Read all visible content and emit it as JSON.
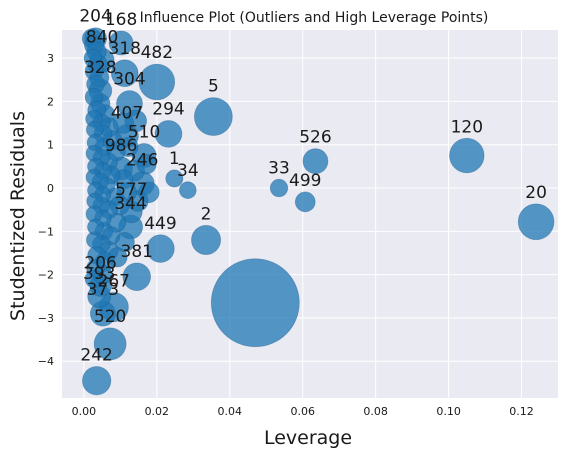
{
  "chart_data": {
    "type": "scatter",
    "title": "Influence Plot (Outliers and High Leverage Points)",
    "xlabel": "Leverage",
    "ylabel": "Studentized Residuals",
    "xlim": [
      -0.006,
      0.13
    ],
    "ylim": [
      -4.85,
      3.65
    ],
    "xticks": [
      0.0,
      0.02,
      0.04,
      0.06,
      0.08,
      0.1,
      0.12
    ],
    "xtick_labels": [
      "0.00",
      "0.02",
      "0.04",
      "0.06",
      "0.08",
      "0.10",
      "0.12"
    ],
    "yticks": [
      3,
      2,
      1,
      0,
      -1,
      -2,
      -3,
      -4
    ],
    "ytick_labels": [
      "3",
      "2",
      "1",
      "0",
      "−1",
      "−2",
      "−3",
      "−4"
    ],
    "grid": true,
    "background": "#eaeaf2",
    "marker_color": "#1f77b4",
    "note": "marker size is proportional to Cook's distance; labeled points show observation index",
    "points": [
      {
        "x": 0.047,
        "y": -2.65,
        "cook": 1.0,
        "label": ""
      },
      {
        "x": 0.124,
        "y": -0.78,
        "cook": 0.12,
        "label": "20"
      },
      {
        "x": 0.105,
        "y": 0.75,
        "cook": 0.11,
        "label": "120"
      },
      {
        "x": 0.0355,
        "y": 1.65,
        "cook": 0.14,
        "label": "5"
      },
      {
        "x": 0.02,
        "y": 2.45,
        "cook": 0.12,
        "label": "482"
      },
      {
        "x": 0.0335,
        "y": -1.2,
        "cook": 0.07,
        "label": "2"
      },
      {
        "x": 0.0635,
        "y": 0.62,
        "cook": 0.045,
        "label": "526"
      },
      {
        "x": 0.0232,
        "y": 1.25,
        "cook": 0.055,
        "label": "294"
      },
      {
        "x": 0.0607,
        "y": -0.32,
        "cook": 0.022,
        "label": "499"
      },
      {
        "x": 0.0535,
        "y": 0.0,
        "cook": 0.014,
        "label": "33"
      },
      {
        "x": 0.0285,
        "y": -0.05,
        "cook": 0.012,
        "label": "34"
      },
      {
        "x": 0.0248,
        "y": 0.22,
        "cook": 0.013,
        "label": "1"
      },
      {
        "x": 0.021,
        "y": -1.4,
        "cook": 0.06,
        "label": "449"
      },
      {
        "x": 0.0035,
        "y": -4.45,
        "cook": 0.065,
        "label": "242"
      },
      {
        "x": 0.0072,
        "y": -3.6,
        "cook": 0.09,
        "label": "520"
      },
      {
        "x": 0.0082,
        "y": -2.75,
        "cook": 0.07,
        "label": "267"
      },
      {
        "x": 0.0145,
        "y": -2.05,
        "cook": 0.06,
        "label": "381"
      },
      {
        "x": 0.0125,
        "y": 1.95,
        "cook": 0.05,
        "label": "304"
      },
      {
        "x": 0.0112,
        "y": 2.65,
        "cook": 0.055,
        "label": "318"
      },
      {
        "x": 0.0102,
        "y": 3.35,
        "cook": 0.04,
        "label": "168"
      },
      {
        "x": 0.0032,
        "y": 3.45,
        "cook": 0.03,
        "label": "204"
      },
      {
        "x": 0.0118,
        "y": 1.2,
        "cook": 0.035,
        "label": "407"
      },
      {
        "x": 0.0165,
        "y": 0.75,
        "cook": 0.04,
        "label": "510"
      },
      {
        "x": 0.016,
        "y": 0.1,
        "cook": 0.04,
        "label": "246"
      },
      {
        "x": 0.0128,
        "y": -0.9,
        "cook": 0.04,
        "label": "344"
      },
      {
        "x": 0.0052,
        "y": -2.9,
        "cook": 0.045,
        "label": "373"
      },
      {
        "x": 0.0042,
        "y": -2.5,
        "cook": 0.035,
        "label": "393"
      },
      {
        "x": 0.0046,
        "y": -2.25,
        "cook": 0.03,
        "label": "206"
      },
      {
        "x": 0.005,
        "y": 2.95,
        "cook": 0.04,
        "label": "840"
      },
      {
        "x": 0.0045,
        "y": 2.25,
        "cook": 0.035,
        "label": "328"
      },
      {
        "x": 0.0102,
        "y": 0.45,
        "cook": 0.035,
        "label": "986"
      },
      {
        "x": 0.013,
        "y": -0.55,
        "cook": 0.03,
        "label": "577"
      },
      {
        "x": 0.0022,
        "y": 3.45,
        "cook": 0.02,
        "label": ""
      },
      {
        "x": 0.0028,
        "y": 3.3,
        "cook": 0.02,
        "label": ""
      },
      {
        "x": 0.0035,
        "y": 3.15,
        "cook": 0.02,
        "label": ""
      },
      {
        "x": 0.0025,
        "y": 3.0,
        "cook": 0.015,
        "label": ""
      },
      {
        "x": 0.0038,
        "y": 2.85,
        "cook": 0.02,
        "label": ""
      },
      {
        "x": 0.0028,
        "y": 2.7,
        "cook": 0.015,
        "label": ""
      },
      {
        "x": 0.0042,
        "y": 2.55,
        "cook": 0.02,
        "label": ""
      },
      {
        "x": 0.0032,
        "y": 2.4,
        "cook": 0.015,
        "label": ""
      },
      {
        "x": 0.0028,
        "y": 2.1,
        "cook": 0.015,
        "label": ""
      },
      {
        "x": 0.0045,
        "y": 1.95,
        "cook": 0.02,
        "label": ""
      },
      {
        "x": 0.0035,
        "y": 1.8,
        "cook": 0.015,
        "label": ""
      },
      {
        "x": 0.0058,
        "y": 1.7,
        "cook": 0.02,
        "label": ""
      },
      {
        "x": 0.0028,
        "y": 1.6,
        "cook": 0.012,
        "label": ""
      },
      {
        "x": 0.0048,
        "y": 1.5,
        "cook": 0.015,
        "label": ""
      },
      {
        "x": 0.0068,
        "y": 1.4,
        "cook": 0.02,
        "label": ""
      },
      {
        "x": 0.003,
        "y": 1.35,
        "cook": 0.012,
        "label": ""
      },
      {
        "x": 0.0052,
        "y": 1.25,
        "cook": 0.015,
        "label": ""
      },
      {
        "x": 0.0078,
        "y": 1.1,
        "cook": 0.02,
        "label": ""
      },
      {
        "x": 0.0032,
        "y": 1.05,
        "cook": 0.012,
        "label": ""
      },
      {
        "x": 0.0055,
        "y": 0.95,
        "cook": 0.015,
        "label": ""
      },
      {
        "x": 0.0088,
        "y": 0.85,
        "cook": 0.02,
        "label": ""
      },
      {
        "x": 0.0028,
        "y": 0.8,
        "cook": 0.01,
        "label": ""
      },
      {
        "x": 0.0048,
        "y": 0.7,
        "cook": 0.012,
        "label": ""
      },
      {
        "x": 0.0068,
        "y": 0.6,
        "cook": 0.015,
        "label": ""
      },
      {
        "x": 0.0032,
        "y": 0.5,
        "cook": 0.01,
        "label": ""
      },
      {
        "x": 0.0052,
        "y": 0.4,
        "cook": 0.012,
        "label": ""
      },
      {
        "x": 0.0075,
        "y": 0.3,
        "cook": 0.015,
        "label": ""
      },
      {
        "x": 0.0028,
        "y": 0.25,
        "cook": 0.01,
        "label": ""
      },
      {
        "x": 0.0045,
        "y": 0.15,
        "cook": 0.01,
        "label": ""
      },
      {
        "x": 0.0062,
        "y": 0.05,
        "cook": 0.012,
        "label": ""
      },
      {
        "x": 0.0032,
        "y": -0.05,
        "cook": 0.01,
        "label": ""
      },
      {
        "x": 0.0052,
        "y": -0.15,
        "cook": 0.01,
        "label": ""
      },
      {
        "x": 0.0085,
        "y": -0.2,
        "cook": 0.015,
        "label": ""
      },
      {
        "x": 0.003,
        "y": -0.3,
        "cook": 0.01,
        "label": ""
      },
      {
        "x": 0.0048,
        "y": -0.4,
        "cook": 0.012,
        "label": ""
      },
      {
        "x": 0.0068,
        "y": -0.5,
        "cook": 0.015,
        "label": ""
      },
      {
        "x": 0.0028,
        "y": -0.6,
        "cook": 0.01,
        "label": ""
      },
      {
        "x": 0.0052,
        "y": -0.7,
        "cook": 0.012,
        "label": ""
      },
      {
        "x": 0.0088,
        "y": -0.8,
        "cook": 0.02,
        "label": ""
      },
      {
        "x": 0.0032,
        "y": -0.9,
        "cook": 0.01,
        "label": ""
      },
      {
        "x": 0.0055,
        "y": -1.0,
        "cook": 0.015,
        "label": ""
      },
      {
        "x": 0.0075,
        "y": -1.1,
        "cook": 0.015,
        "label": ""
      },
      {
        "x": 0.003,
        "y": -1.2,
        "cook": 0.012,
        "label": ""
      },
      {
        "x": 0.0048,
        "y": -1.3,
        "cook": 0.015,
        "label": ""
      },
      {
        "x": 0.0068,
        "y": -1.45,
        "cook": 0.02,
        "label": ""
      },
      {
        "x": 0.0035,
        "y": -1.55,
        "cook": 0.015,
        "label": ""
      },
      {
        "x": 0.0058,
        "y": -1.7,
        "cook": 0.02,
        "label": ""
      },
      {
        "x": 0.0032,
        "y": -1.85,
        "cook": 0.015,
        "label": ""
      },
      {
        "x": 0.005,
        "y": -2.0,
        "cook": 0.02,
        "label": ""
      },
      {
        "x": 0.0028,
        "y": -2.1,
        "cook": 0.015,
        "label": ""
      },
      {
        "x": 0.0108,
        "y": 0.2,
        "cook": 0.02,
        "label": ""
      },
      {
        "x": 0.0118,
        "y": -0.1,
        "cook": 0.02,
        "label": ""
      },
      {
        "x": 0.0138,
        "y": 0.4,
        "cook": 0.025,
        "label": ""
      },
      {
        "x": 0.0148,
        "y": -0.3,
        "cook": 0.025,
        "label": ""
      },
      {
        "x": 0.0098,
        "y": -0.4,
        "cook": 0.02,
        "label": ""
      },
      {
        "x": 0.0122,
        "y": 0.95,
        "cook": 0.02,
        "label": ""
      },
      {
        "x": 0.0112,
        "y": -1.25,
        "cook": 0.02,
        "label": ""
      },
      {
        "x": 0.0142,
        "y": 1.55,
        "cook": 0.03,
        "label": ""
      },
      {
        "x": 0.0108,
        "y": 1.5,
        "cook": 0.025,
        "label": ""
      },
      {
        "x": 0.0092,
        "y": -1.6,
        "cook": 0.02,
        "label": ""
      },
      {
        "x": 0.0178,
        "y": -0.1,
        "cook": 0.025,
        "label": ""
      },
      {
        "x": 0.0172,
        "y": 0.55,
        "cook": 0.02,
        "label": ""
      }
    ]
  }
}
